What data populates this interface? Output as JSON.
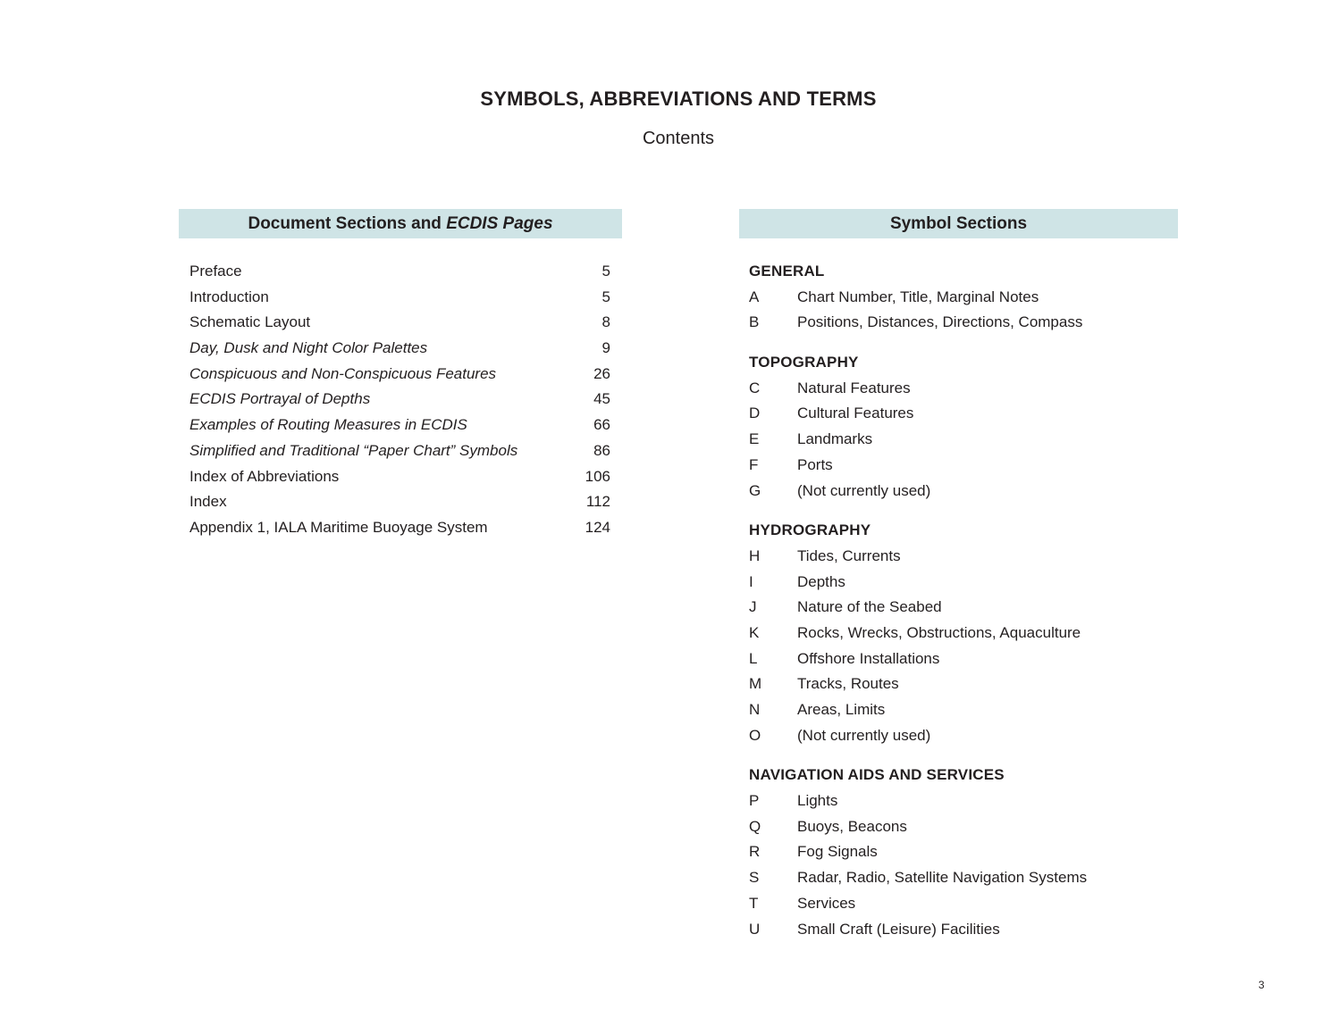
{
  "page": {
    "title": "SYMBOLS, ABBREVIATIONS AND TERMS",
    "subtitle": "Contents",
    "page_number": "3",
    "band_color": "#cfe4e6",
    "text_color": "#231f20"
  },
  "document_sections": {
    "header_text": "Document Sections and ",
    "header_italic": "ECDIS Pages",
    "items": [
      {
        "label": "Preface",
        "page": "5",
        "italic": false
      },
      {
        "label": "Introduction",
        "page": "5",
        "italic": false
      },
      {
        "label": "Schematic Layout",
        "page": "8",
        "italic": false
      },
      {
        "label": "Day, Dusk and Night Color Palettes",
        "page": "9",
        "italic": true
      },
      {
        "label": "Conspicuous and Non-Conspicuous Features",
        "page": "26",
        "italic": true
      },
      {
        "label": "ECDIS Portrayal of Depths",
        "page": "45",
        "italic": true
      },
      {
        "label": "Examples of Routing Measures in ECDIS",
        "page": "66",
        "italic": true
      },
      {
        "label": "Simplified and Traditional “Paper Chart” Symbols",
        "page": "86",
        "italic": true
      },
      {
        "label": "Index of Abbreviations",
        "page": "106",
        "italic": false
      },
      {
        "label": "Index",
        "page": "112",
        "italic": false
      },
      {
        "label": "Appendix 1, IALA Maritime Buoyage System",
        "page": "124",
        "italic": false
      }
    ]
  },
  "symbol_sections": {
    "header": "Symbol Sections",
    "groups": [
      {
        "title": "GENERAL",
        "entries": [
          {
            "letter": "A",
            "label": "Chart Number, Title, Marginal Notes"
          },
          {
            "letter": "B",
            "label": "Positions, Distances, Directions, Compass"
          }
        ]
      },
      {
        "title": "TOPOGRAPHY",
        "entries": [
          {
            "letter": "C",
            "label": "Natural Features"
          },
          {
            "letter": "D",
            "label": "Cultural Features"
          },
          {
            "letter": "E",
            "label": "Landmarks"
          },
          {
            "letter": "F",
            "label": "Ports"
          },
          {
            "letter": "G",
            "label": "(Not currently used)"
          }
        ]
      },
      {
        "title": "HYDROGRAPHY",
        "entries": [
          {
            "letter": "H",
            "label": "Tides, Currents"
          },
          {
            "letter": "I",
            "label": "Depths"
          },
          {
            "letter": "J",
            "label": "Nature of the Seabed"
          },
          {
            "letter": "K",
            "label": "Rocks, Wrecks, Obstructions, Aquaculture"
          },
          {
            "letter": "L",
            "label": "Offshore Installations"
          },
          {
            "letter": "M",
            "label": "Tracks, Routes"
          },
          {
            "letter": "N",
            "label": "Areas, Limits"
          },
          {
            "letter": "O",
            "label": "(Not currently used)"
          }
        ]
      },
      {
        "title": "NAVIGATION AIDS AND SERVICES",
        "entries": [
          {
            "letter": "P",
            "label": "Lights"
          },
          {
            "letter": "Q",
            "label": "Buoys, Beacons"
          },
          {
            "letter": "R",
            "label": "Fog Signals"
          },
          {
            "letter": "S",
            "label": "Radar, Radio, Satellite Navigation Systems"
          },
          {
            "letter": "T",
            "label": "Services"
          },
          {
            "letter": "U",
            "label": "Small Craft (Leisure) Facilities"
          }
        ]
      }
    ]
  }
}
